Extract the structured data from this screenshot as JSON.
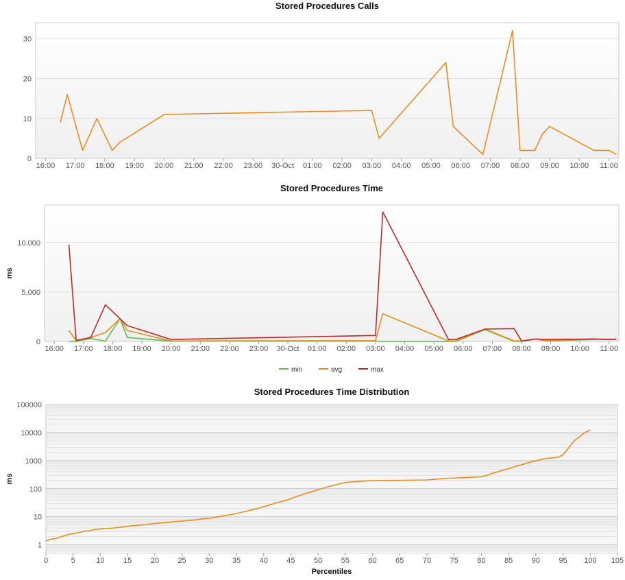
{
  "chart_data": [
    {
      "type": "line",
      "title": "Stored Procedures Calls",
      "xlabel": "",
      "ylabel": "",
      "xlim": [
        "2023-10-29T15:40",
        "2023-10-30T11:20"
      ],
      "ylim": [
        0,
        34
      ],
      "x_ticks": [
        {
          "t": "2023-10-29T16:00",
          "label": "16:00"
        },
        {
          "t": "2023-10-29T17:00",
          "label": "17:00"
        },
        {
          "t": "2023-10-29T18:00",
          "label": "18:00"
        },
        {
          "t": "2023-10-29T19:00",
          "label": "19:00"
        },
        {
          "t": "2023-10-29T20:00",
          "label": "20:00"
        },
        {
          "t": "2023-10-29T21:00",
          "label": "21:00"
        },
        {
          "t": "2023-10-29T22:00",
          "label": "22:00"
        },
        {
          "t": "2023-10-29T23:00",
          "label": "23:00"
        },
        {
          "t": "2023-10-30T00:00",
          "label": "30-Oct"
        },
        {
          "t": "2023-10-30T01:00",
          "label": "01:00"
        },
        {
          "t": "2023-10-30T02:00",
          "label": "02:00"
        },
        {
          "t": "2023-10-30T03:00",
          "label": "03:00"
        },
        {
          "t": "2023-10-30T04:00",
          "label": "04:00"
        },
        {
          "t": "2023-10-30T05:00",
          "label": "05:00"
        },
        {
          "t": "2023-10-30T06:00",
          "label": "06:00"
        },
        {
          "t": "2023-10-30T07:00",
          "label": "07:00"
        },
        {
          "t": "2023-10-30T08:00",
          "label": "08:00"
        },
        {
          "t": "2023-10-30T09:00",
          "label": "09:00"
        },
        {
          "t": "2023-10-30T10:00",
          "label": "10:00"
        },
        {
          "t": "2023-10-30T11:00",
          "label": "11:00"
        }
      ],
      "y_ticks": [
        {
          "v": 0,
          "label": "0"
        },
        {
          "v": 10,
          "label": "10"
        },
        {
          "v": 20,
          "label": "20"
        },
        {
          "v": 30,
          "label": "30"
        }
      ],
      "grid": true,
      "legend": "none",
      "series": [
        {
          "color": "#ee8a1c",
          "points": [
            [
              "2023-10-29T16:30",
              9
            ],
            [
              "2023-10-29T16:44",
              16
            ],
            [
              "2023-10-29T17:15",
              2
            ],
            [
              "2023-10-29T17:44",
              10
            ],
            [
              "2023-10-29T18:15",
              2
            ],
            [
              "2023-10-29T18:30",
              4
            ],
            [
              "2023-10-29T20:00",
              11
            ],
            [
              "2023-10-30T03:00",
              12
            ],
            [
              "2023-10-30T03:15",
              5
            ],
            [
              "2023-10-30T05:30",
              24
            ],
            [
              "2023-10-30T05:45",
              8
            ],
            [
              "2023-10-30T06:45",
              1
            ],
            [
              "2023-10-30T07:45",
              32
            ],
            [
              "2023-10-30T08:00",
              2
            ],
            [
              "2023-10-30T08:30",
              2
            ],
            [
              "2023-10-30T08:45",
              6
            ],
            [
              "2023-10-30T09:00",
              8
            ],
            [
              "2023-10-30T10:30",
              2
            ],
            [
              "2023-10-30T11:00",
              2
            ],
            [
              "2023-10-30T11:15",
              1
            ]
          ]
        }
      ]
    },
    {
      "type": "line",
      "title": "Stored Procedures Time",
      "xlabel": "",
      "ylabel": "ms",
      "xlim": [
        "2023-10-29T15:40",
        "2023-10-30T11:20"
      ],
      "ylim": [
        0,
        13800
      ],
      "x_ticks": [
        {
          "t": "2023-10-29T16:00",
          "label": "16:00"
        },
        {
          "t": "2023-10-29T17:00",
          "label": "17:00"
        },
        {
          "t": "2023-10-29T18:00",
          "label": "18:00"
        },
        {
          "t": "2023-10-29T19:00",
          "label": "19:00"
        },
        {
          "t": "2023-10-29T20:00",
          "label": "20:00"
        },
        {
          "t": "2023-10-29T21:00",
          "label": "21:00"
        },
        {
          "t": "2023-10-29T22:00",
          "label": "22:00"
        },
        {
          "t": "2023-10-29T23:00",
          "label": "23:00"
        },
        {
          "t": "2023-10-30T00:00",
          "label": "30-Oct"
        },
        {
          "t": "2023-10-30T01:00",
          "label": "01:00"
        },
        {
          "t": "2023-10-30T02:00",
          "label": "02:00"
        },
        {
          "t": "2023-10-30T03:00",
          "label": "03:00"
        },
        {
          "t": "2023-10-30T04:00",
          "label": "04:00"
        },
        {
          "t": "2023-10-30T05:00",
          "label": "05:00"
        },
        {
          "t": "2023-10-30T06:00",
          "label": "06:00"
        },
        {
          "t": "2023-10-30T07:00",
          "label": "07:00"
        },
        {
          "t": "2023-10-30T08:00",
          "label": "08:00"
        },
        {
          "t": "2023-10-30T09:00",
          "label": "09:00"
        },
        {
          "t": "2023-10-30T10:00",
          "label": "10:00"
        },
        {
          "t": "2023-10-30T11:00",
          "label": "11:00"
        }
      ],
      "y_ticks": [
        {
          "v": 0,
          "label": "0"
        },
        {
          "v": 5000,
          "label": "5,000"
        },
        {
          "v": 10000,
          "label": "10,000"
        }
      ],
      "grid": true,
      "legend": "bottom-center",
      "series": [
        {
          "name": "min",
          "color": "#5cbf4b",
          "points": [
            [
              "2023-10-29T16:30",
              0
            ],
            [
              "2023-10-29T16:45",
              0
            ],
            [
              "2023-10-29T17:15",
              300
            ],
            [
              "2023-10-29T17:45",
              30
            ],
            [
              "2023-10-29T18:15",
              2300
            ],
            [
              "2023-10-29T18:30",
              400
            ],
            [
              "2023-10-29T20:00",
              30
            ],
            [
              "2023-10-30T03:00",
              30
            ],
            [
              "2023-10-30T03:15",
              0
            ],
            [
              "2023-10-30T05:30",
              0
            ],
            [
              "2023-10-30T05:45",
              0
            ],
            [
              "2023-10-30T06:45",
              1200
            ],
            [
              "2023-10-30T07:45",
              0
            ],
            [
              "2023-10-30T08:00",
              0
            ],
            [
              "2023-10-30T08:30",
              250
            ],
            [
              "2023-10-30T08:45",
              80
            ],
            [
              "2023-10-30T09:00",
              50
            ],
            [
              "2023-10-30T10:30",
              200
            ],
            [
              "2023-10-30T11:00",
              200
            ],
            [
              "2023-10-30T11:15",
              200
            ]
          ]
        },
        {
          "name": "avg",
          "color": "#ee8a1c",
          "points": [
            [
              "2023-10-29T16:30",
              1100
            ],
            [
              "2023-10-29T16:45",
              100
            ],
            [
              "2023-10-29T17:15",
              400
            ],
            [
              "2023-10-29T17:45",
              900
            ],
            [
              "2023-10-29T18:15",
              2300
            ],
            [
              "2023-10-29T18:30",
              1100
            ],
            [
              "2023-10-29T20:00",
              50
            ],
            [
              "2023-10-30T03:00",
              80
            ],
            [
              "2023-10-30T03:15",
              2800
            ],
            [
              "2023-10-30T05:30",
              50
            ],
            [
              "2023-10-30T05:45",
              50
            ],
            [
              "2023-10-30T06:45",
              1250
            ],
            [
              "2023-10-30T07:45",
              50
            ],
            [
              "2023-10-30T08:00",
              50
            ],
            [
              "2023-10-30T08:30",
              250
            ],
            [
              "2023-10-30T08:45",
              100
            ],
            [
              "2023-10-30T09:00",
              100
            ],
            [
              "2023-10-30T10:30",
              250
            ],
            [
              "2023-10-30T11:00",
              200
            ],
            [
              "2023-10-30T11:15",
              200
            ]
          ]
        },
        {
          "name": "max",
          "color": "#c0282a",
          "points": [
            [
              "2023-10-29T16:30",
              9800
            ],
            [
              "2023-10-29T16:45",
              100
            ],
            [
              "2023-10-29T17:15",
              400
            ],
            [
              "2023-10-29T17:45",
              3700
            ],
            [
              "2023-10-29T18:15",
              2300
            ],
            [
              "2023-10-29T18:30",
              1600
            ],
            [
              "2023-10-29T20:00",
              200
            ],
            [
              "2023-10-30T03:00",
              600
            ],
            [
              "2023-10-30T03:15",
              13100
            ],
            [
              "2023-10-30T05:30",
              200
            ],
            [
              "2023-10-30T05:45",
              200
            ],
            [
              "2023-10-30T06:45",
              1250
            ],
            [
              "2023-10-30T07:45",
              1300
            ],
            [
              "2023-10-30T08:00",
              50
            ],
            [
              "2023-10-30T08:30",
              250
            ],
            [
              "2023-10-30T08:45",
              200
            ],
            [
              "2023-10-30T09:00",
              200
            ],
            [
              "2023-10-30T10:30",
              250
            ],
            [
              "2023-10-30T11:00",
              200
            ],
            [
              "2023-10-30T11:15",
              200
            ]
          ]
        }
      ]
    },
    {
      "type": "line",
      "title": "Stored Procedures Time Distribution",
      "xlabel": "Percentiles",
      "ylabel": "ms",
      "xlim": [
        0,
        105
      ],
      "ylim": [
        0.5,
        100000
      ],
      "yscale": "log",
      "x_ticks": [
        0,
        5,
        10,
        15,
        20,
        25,
        30,
        35,
        40,
        45,
        50,
        55,
        60,
        65,
        70,
        75,
        80,
        85,
        90,
        95,
        100,
        105
      ],
      "y_ticks": [
        {
          "v": 1,
          "label": "1"
        },
        {
          "v": 10,
          "label": "10"
        },
        {
          "v": 100,
          "label": "100"
        },
        {
          "v": 1000,
          "label": "1000"
        },
        {
          "v": 10000,
          "label": "10000"
        },
        {
          "v": 100000,
          "label": "100000"
        }
      ],
      "grid": true,
      "legend": "none",
      "series": [
        {
          "color": "#ee8a1c",
          "points": [
            [
              0,
              1.4
            ],
            [
              1,
              1.6
            ],
            [
              2,
              1.7
            ],
            [
              3,
              2.0
            ],
            [
              4,
              2.3
            ],
            [
              5,
              2.5
            ],
            [
              6,
              2.7
            ],
            [
              7,
              3.0
            ],
            [
              8,
              3.2
            ],
            [
              9,
              3.5
            ],
            [
              10,
              3.7
            ],
            [
              11,
              3.8
            ],
            [
              12,
              3.9
            ],
            [
              13,
              4.1
            ],
            [
              14,
              4.3
            ],
            [
              15,
              4.5
            ],
            [
              16,
              4.8
            ],
            [
              17,
              5.0
            ],
            [
              18,
              5.2
            ],
            [
              19,
              5.5
            ],
            [
              20,
              5.8
            ],
            [
              21,
              6.0
            ],
            [
              22,
              6.2
            ],
            [
              23,
              6.5
            ],
            [
              24,
              6.8
            ],
            [
              25,
              7.0
            ],
            [
              26,
              7.3
            ],
            [
              27,
              7.6
            ],
            [
              28,
              8.0
            ],
            [
              29,
              8.5
            ],
            [
              30,
              8.8
            ],
            [
              31,
              9.5
            ],
            [
              32,
              10.3
            ],
            [
              33,
              11
            ],
            [
              34,
              12
            ],
            [
              35,
              13
            ],
            [
              36,
              14.5
            ],
            [
              37,
              16
            ],
            [
              38,
              18
            ],
            [
              39,
              20
            ],
            [
              40,
              23
            ],
            [
              41,
              26
            ],
            [
              42,
              30
            ],
            [
              43,
              34
            ],
            [
              44,
              38
            ],
            [
              45,
              44
            ],
            [
              46,
              52
            ],
            [
              47,
              60
            ],
            [
              48,
              70
            ],
            [
              49,
              80
            ],
            [
              50,
              92
            ],
            [
              51,
              105
            ],
            [
              52,
              120
            ],
            [
              53,
              135
            ],
            [
              54,
              150
            ],
            [
              55,
              165
            ],
            [
              56,
              175
            ],
            [
              57,
              180
            ],
            [
              58,
              185
            ],
            [
              59,
              190
            ],
            [
              60,
              195
            ],
            [
              65,
              198
            ],
            [
              70,
              205
            ],
            [
              72,
              220
            ],
            [
              74,
              235
            ],
            [
              76,
              245
            ],
            [
              78,
              255
            ],
            [
              80,
              265
            ],
            [
              81,
              300
            ],
            [
              82,
              350
            ],
            [
              83,
              400
            ],
            [
              84,
              460
            ],
            [
              85,
              520
            ],
            [
              86,
              600
            ],
            [
              87,
              680
            ],
            [
              88,
              780
            ],
            [
              89,
              880
            ],
            [
              90,
              980
            ],
            [
              91,
              1100
            ],
            [
              92,
              1200
            ],
            [
              93,
              1250
            ],
            [
              94,
              1300
            ],
            [
              95,
              1600
            ],
            [
              96,
              2800
            ],
            [
              97,
              5000
            ],
            [
              98,
              7000
            ],
            [
              99,
              10000
            ],
            [
              100,
              12500
            ]
          ]
        }
      ]
    }
  ]
}
